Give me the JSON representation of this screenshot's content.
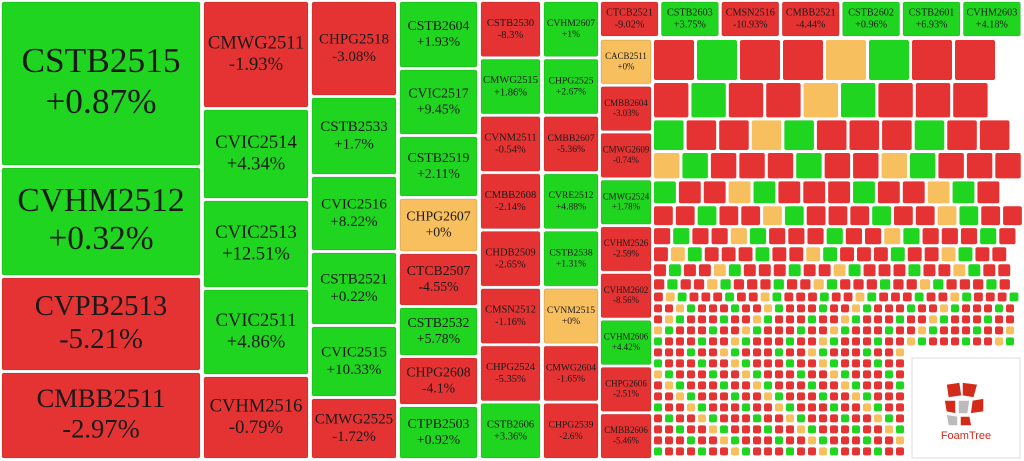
{
  "chart_data": {
    "type": "treemap",
    "categories": [
      "CSTB2515",
      "CVHM2512",
      "CVPB2513",
      "CMBB2511",
      "CMWG2511",
      "CVIC2514",
      "CVIC2513",
      "CVIC2511",
      "CVHM2516",
      "CHPG2518",
      "CSTB2533",
      "CVIC2516",
      "CSTB2521",
      "CVIC2515",
      "CMWG2525",
      "CSTB2604",
      "CVIC2517",
      "CSTB2519",
      "CHPG2607",
      "CTCB2507",
      "CSTB2532",
      "CHPG2608",
      "CTPB2503",
      "CSTB2530",
      "CMWG2515",
      "CVNM2511",
      "CMBB2608",
      "CHDB2509",
      "CMSN2512",
      "CHPG2524",
      "CSTB2606",
      "CVHM2607",
      "CHPG2525",
      "CMBB2607",
      "CVRE2512",
      "CSTB2538",
      "CVNM2515",
      "CMWG2604",
      "CHPG2539",
      "CTCB2521",
      "CSTB2603",
      "CMSN2516",
      "CMBB2521",
      "CSTB2602",
      "CSTB2601",
      "CVHM2603",
      "CACB2511",
      "CMBB2604",
      "CMWG2609",
      "CMWG2524",
      "CVHM2526",
      "CVHM2602",
      "CVHM2606",
      "CHPG2606",
      "CMBB2606"
    ],
    "values": [
      0.87,
      0.32,
      -5.21,
      -2.97,
      -1.93,
      4.34,
      12.51,
      4.86,
      -0.79,
      -3.08,
      1.7,
      8.22,
      0.22,
      10.33,
      -1.72,
      1.93,
      9.45,
      2.11,
      0,
      -4.55,
      5.78,
      -4.1,
      0.92,
      -8.3,
      1.86,
      -0.54,
      -2.14,
      -2.65,
      -1.16,
      -5.35,
      3.36,
      1,
      2.67,
      -5.36,
      4.88,
      1.31,
      0,
      -1.65,
      -2.6,
      -9.02,
      3.75,
      -10.93,
      -4.44,
      0.96,
      6.93,
      4.18,
      0,
      -3.03,
      -0.74,
      1.78,
      -2.59,
      -8.56,
      4.42,
      -2.51,
      -5.46
    ],
    "value_labels": [
      "+0.87%",
      "+0.32%",
      "-5.21%",
      "-2.97%",
      "-1.93%",
      "+4.34%",
      "+12.51%",
      "+4.86%",
      "-0.79%",
      "-3.08%",
      "+1.7%",
      "+8.22%",
      "+0.22%",
      "+10.33%",
      "-1.72%",
      "+1.93%",
      "+9.45%",
      "+2.11%",
      "+0%",
      "-4.55%",
      "+5.78%",
      "-4.1%",
      "+0.92%",
      "-8.3%",
      "+1.86%",
      "-0.54%",
      "-2.14%",
      "-2.65%",
      "-1.16%",
      "-5.35%",
      "+3.36%",
      "+1%",
      "+2.67%",
      "-5.36%",
      "+4.88%",
      "+1.31%",
      "+0%",
      "-1.65%",
      "-2.6%",
      "-9.02%",
      "+3.75%",
      "-10.93%",
      "-4.44%",
      "+0.96%",
      "+6.93%",
      "+4.18%",
      "+0%",
      "-3.03%",
      "-0.74%",
      "+1.78%",
      "-2.59%",
      "-8.56%",
      "+4.42%",
      "-2.51%",
      "-5.46%"
    ],
    "colors": {
      "up": "#1fd51f",
      "down": "#e53333",
      "flat": "#f7bf5e"
    },
    "watermark": "FoamTree"
  }
}
